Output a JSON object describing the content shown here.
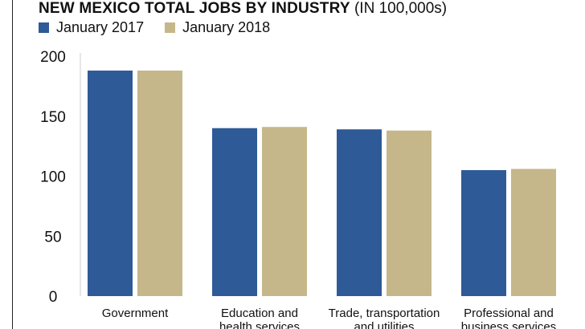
{
  "chart_data": {
    "type": "bar",
    "title": "NEW MEXICO TOTAL JOBS BY INDUSTRY",
    "subtitle": "(IN 100,000s)",
    "categories": [
      [
        "Government"
      ],
      [
        "Education and",
        "health services"
      ],
      [
        "Trade, transportation",
        "and utilities"
      ],
      [
        "Professional and",
        "business services"
      ]
    ],
    "series": [
      {
        "name": "January 2017",
        "color": "#2e5a97",
        "values": [
          188,
          140,
          139,
          105
        ]
      },
      {
        "name": "January 2018",
        "color": "#c5b78a",
        "values": [
          188,
          141,
          138,
          106
        ]
      }
    ],
    "y_ticks": [
      "0",
      "50",
      "100",
      "150",
      "200"
    ],
    "y_tick_values": [
      0,
      50,
      100,
      150,
      200
    ],
    "ylim": [
      0,
      200
    ],
    "grid": false,
    "legend_position": "top-left"
  }
}
